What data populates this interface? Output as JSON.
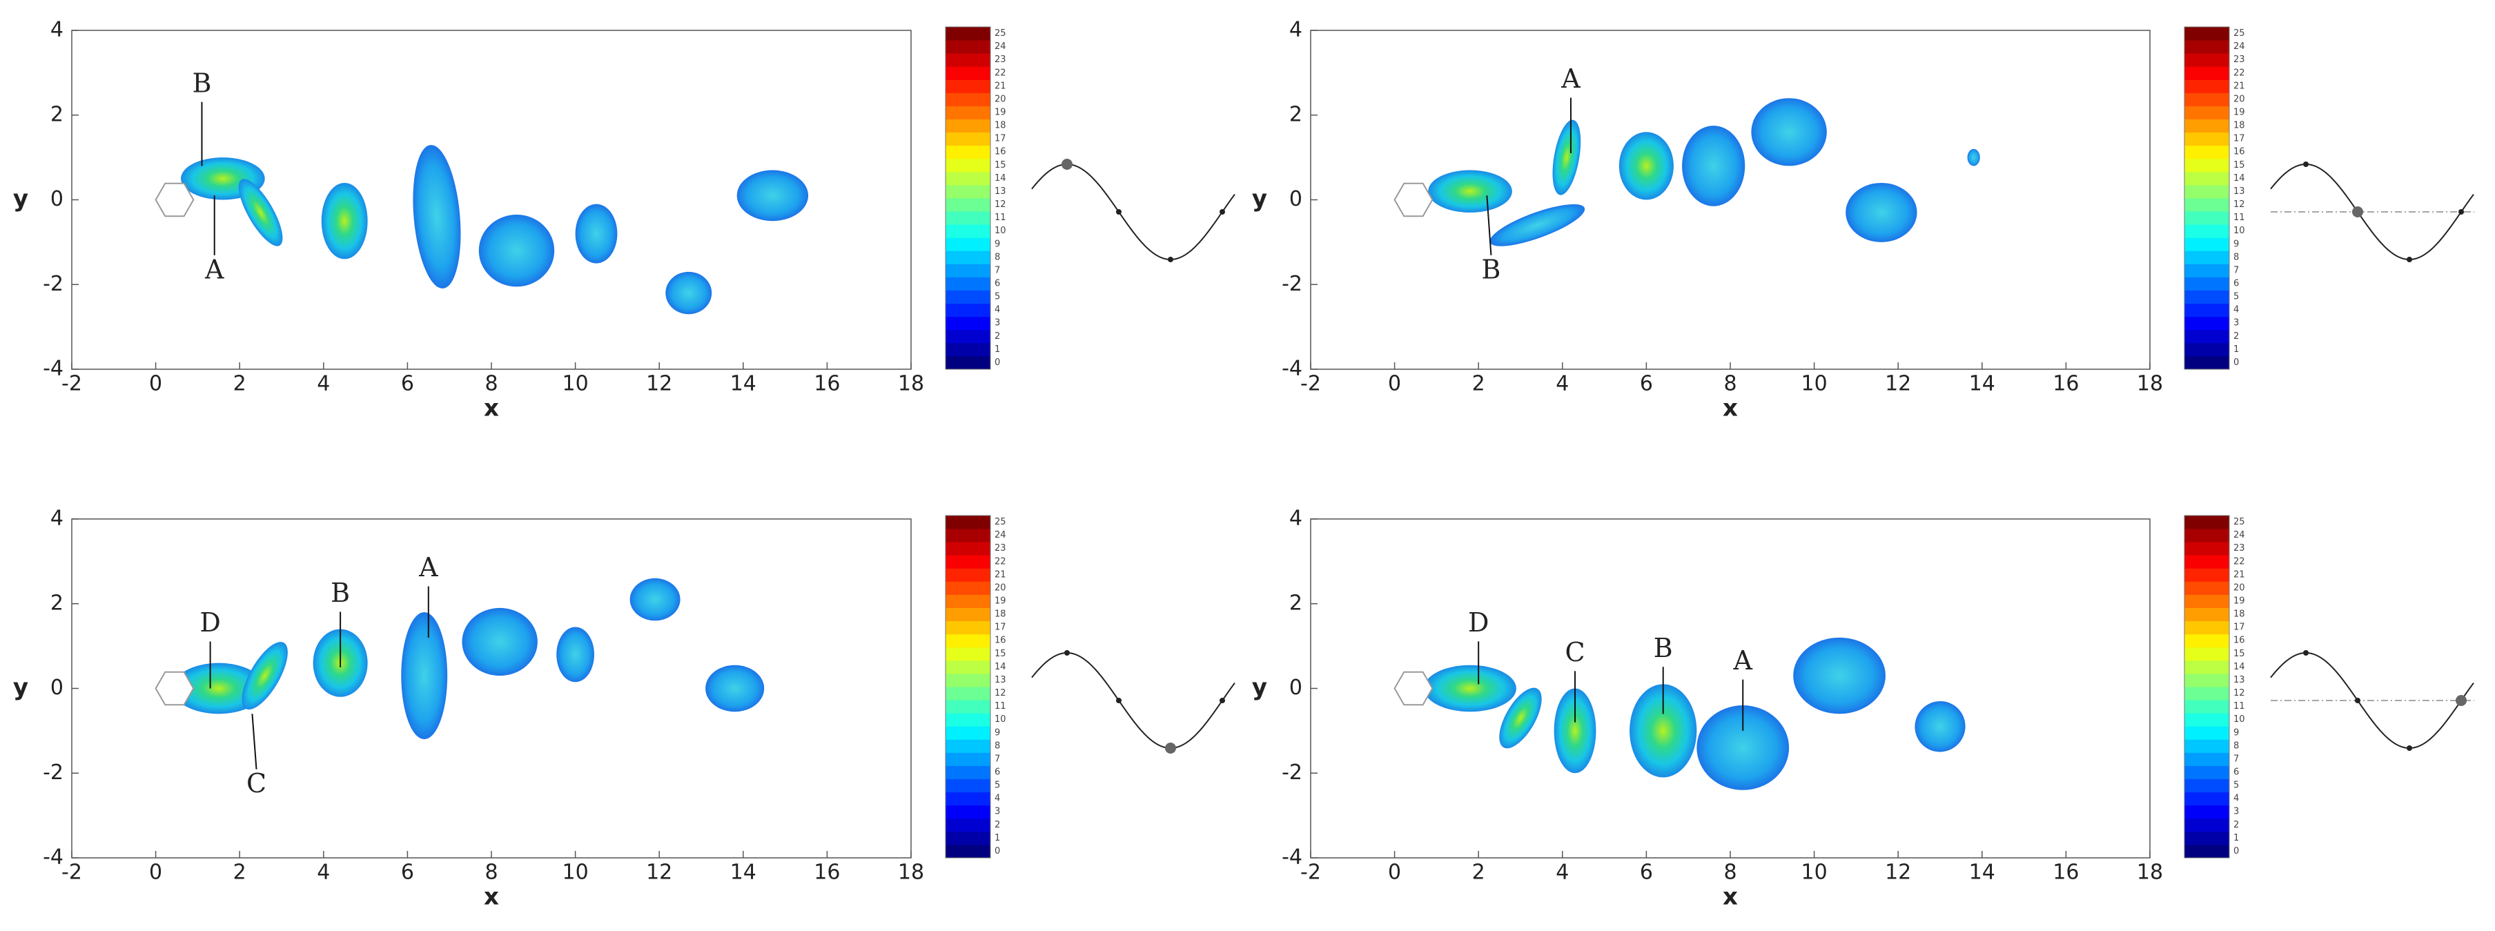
{
  "chart_data": [
    {
      "type": "contour",
      "xlabel": "x",
      "ylabel": "y",
      "xlim": [
        -2,
        18
      ],
      "ylim": [
        -4,
        4
      ],
      "xticks": [
        -2,
        0,
        2,
        4,
        6,
        8,
        10,
        12,
        14,
        16,
        18
      ],
      "yticks": [
        -4,
        -2,
        0,
        2,
        4
      ],
      "colorbar": {
        "colormap": "jet",
        "limits": [
          0,
          25
        ],
        "ticks": [
          0,
          1,
          2,
          3,
          4,
          5,
          6,
          7,
          8,
          9,
          10,
          11,
          12,
          13,
          14,
          15,
          16,
          17,
          18,
          19,
          20,
          21,
          22,
          23,
          24,
          25
        ]
      },
      "annotations": [
        "B",
        "A"
      ]
    },
    {
      "type": "contour",
      "xlabel": "x",
      "ylabel": "y",
      "xlim": [
        -2,
        18
      ],
      "ylim": [
        -4,
        4
      ],
      "xticks": [
        -2,
        0,
        2,
        4,
        6,
        8,
        10,
        12,
        14,
        16,
        18
      ],
      "yticks": [
        -4,
        -2,
        0,
        2,
        4
      ],
      "colorbar": {
        "colormap": "jet",
        "limits": [
          0,
          25
        ],
        "ticks": [
          0,
          1,
          2,
          3,
          4,
          5,
          6,
          7,
          8,
          9,
          10,
          11,
          12,
          13,
          14,
          15,
          16,
          17,
          18,
          19,
          20,
          21,
          22,
          23,
          24,
          25
        ]
      },
      "annotations": [
        "A",
        "B"
      ]
    },
    {
      "type": "contour",
      "xlabel": "x",
      "ylabel": "y",
      "xlim": [
        -2,
        18
      ],
      "ylim": [
        -4,
        4
      ],
      "xticks": [
        -2,
        0,
        2,
        4,
        6,
        8,
        10,
        12,
        14,
        16,
        18
      ],
      "yticks": [
        -4,
        -2,
        0,
        2,
        4
      ],
      "colorbar": {
        "colormap": "jet",
        "limits": [
          0,
          25
        ],
        "ticks": [
          0,
          1,
          2,
          3,
          4,
          5,
          6,
          7,
          8,
          9,
          10,
          11,
          12,
          13,
          14,
          15,
          16,
          17,
          18,
          19,
          20,
          21,
          22,
          23,
          24,
          25
        ]
      },
      "annotations": [
        "D",
        "B",
        "A",
        "C"
      ]
    },
    {
      "type": "contour",
      "xlabel": "x",
      "ylabel": "y",
      "xlim": [
        -2,
        18
      ],
      "ylim": [
        -4,
        4
      ],
      "xticks": [
        -2,
        0,
        2,
        4,
        6,
        8,
        10,
        12,
        14,
        16,
        18
      ],
      "yticks": [
        -4,
        -2,
        0,
        2,
        4
      ],
      "colorbar": {
        "colormap": "jet",
        "limits": [
          0,
          25
        ],
        "ticks": [
          0,
          1,
          2,
          3,
          4,
          5,
          6,
          7,
          8,
          9,
          10,
          11,
          12,
          13,
          14,
          15,
          16,
          17,
          18,
          19,
          20,
          21,
          22,
          23,
          24,
          25
        ]
      },
      "annotations": [
        "D",
        "C",
        "B",
        "A"
      ]
    }
  ]
}
